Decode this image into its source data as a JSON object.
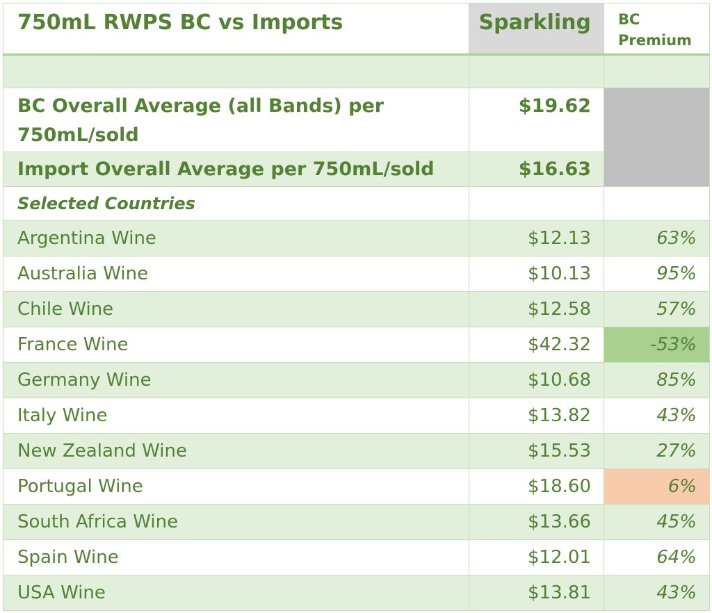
{
  "header": {
    "title": "750mL RWPS BC vs Imports",
    "col_sparkling": "Sparkling",
    "col_premium_line1": "BC",
    "col_premium_line2": "Premium"
  },
  "summary": {
    "bc_label": "BC Overall Average (all Bands) per 750mL/sold",
    "bc_value": "$19.62",
    "import_label": "Import Overall Average per 750mL/sold",
    "import_value": "$16.63",
    "selected_label": "Selected Countries"
  },
  "rows": [
    {
      "country": "Argentina Wine",
      "price": "$12.13",
      "premium": "63%"
    },
    {
      "country": "Australia Wine",
      "price": "$10.13",
      "premium": "95%"
    },
    {
      "country": "Chile Wine",
      "price": "$12.58",
      "premium": "57%"
    },
    {
      "country": "France Wine",
      "price": "$42.32",
      "premium": "-53%"
    },
    {
      "country": "Germany Wine",
      "price": "$10.68",
      "premium": "85%"
    },
    {
      "country": "Italy Wine",
      "price": "$13.82",
      "premium": "43%"
    },
    {
      "country": "New Zealand Wine",
      "price": "$15.53",
      "premium": "27%"
    },
    {
      "country": "Portugal Wine",
      "price": "$18.60",
      "premium": "6%"
    },
    {
      "country": "South Africa Wine",
      "price": "$13.66",
      "premium": "45%"
    },
    {
      "country": "Spain Wine",
      "price": "$12.01",
      "premium": "64%"
    },
    {
      "country": "USA Wine",
      "price": "$13.81",
      "premium": "43%"
    }
  ],
  "colors": {
    "text": "#548235",
    "band": "#e2efda",
    "header_grey": "#d9d9d9",
    "highlight_low": "#a9d08e",
    "highlight_high": "#f8cbad"
  }
}
